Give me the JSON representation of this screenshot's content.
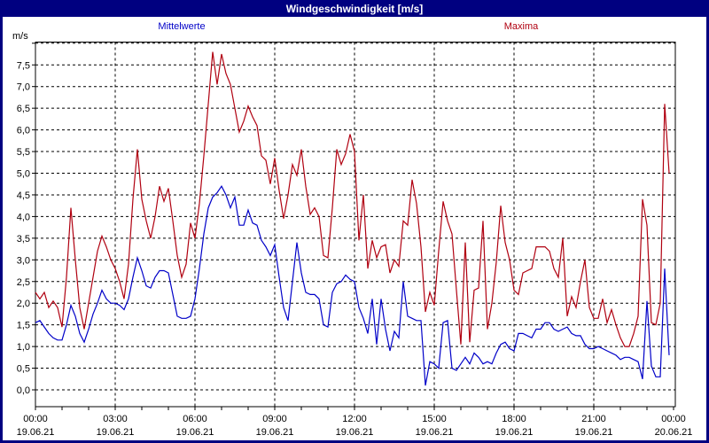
{
  "window": {
    "title": "Windgeschwindigkeit [m/s]"
  },
  "legend": {
    "mean_label": "Mittelwerte",
    "max_label": "Maxima"
  },
  "y_axis": {
    "unit": "m/s"
  },
  "chart_data": {
    "type": "line",
    "title": "Windgeschwindigkeit [m/s]",
    "grid": true,
    "x_start_hour": 0,
    "x_step_minutes": 10,
    "x_range_hours": [
      0,
      24
    ],
    "y_range": [
      0,
      8
    ],
    "y_tick_step": 0.5,
    "y_tick_labels": [
      "0,0",
      "0,5",
      "1,0",
      "1,5",
      "2,0",
      "2,5",
      "3,0",
      "3,5",
      "4,0",
      "4,5",
      "5,0",
      "5,5",
      "6,0",
      "6,5",
      "7,0",
      "7,5"
    ],
    "x_ticks": [
      {
        "time": "00:00",
        "date": "19.06.21"
      },
      {
        "time": "03:00",
        "date": "19.06.21"
      },
      {
        "time": "06:00",
        "date": "19.06.21"
      },
      {
        "time": "09:00",
        "date": "19.06.21"
      },
      {
        "time": "12:00",
        "date": "19.06.21"
      },
      {
        "time": "15:00",
        "date": "19.06.21"
      },
      {
        "time": "18:00",
        "date": "19.06.21"
      },
      {
        "time": "21:00",
        "date": "19.06.21"
      },
      {
        "time": "00:00",
        "date": "20.06.21"
      }
    ],
    "series": [
      {
        "name": "Mittelwerte",
        "color": "#0000C8",
        "values": [
          1.55,
          1.6,
          1.45,
          1.3,
          1.2,
          1.15,
          1.15,
          1.5,
          1.95,
          1.7,
          1.3,
          1.1,
          1.4,
          1.75,
          2.0,
          2.3,
          2.1,
          2.0,
          2.0,
          1.95,
          1.85,
          2.1,
          2.6,
          3.05,
          2.75,
          2.4,
          2.35,
          2.6,
          2.75,
          2.75,
          2.7,
          2.2,
          1.7,
          1.65,
          1.65,
          1.7,
          2.1,
          2.8,
          3.6,
          4.2,
          4.45,
          4.55,
          4.7,
          4.5,
          4.2,
          4.45,
          3.8,
          3.8,
          4.15,
          3.85,
          3.8,
          3.45,
          3.3,
          3.1,
          3.35,
          2.6,
          1.9,
          1.6,
          2.5,
          3.4,
          2.7,
          2.25,
          2.2,
          2.2,
          2.1,
          1.5,
          1.45,
          2.25,
          2.45,
          2.5,
          2.65,
          2.55,
          2.5,
          1.9,
          1.65,
          1.3,
          2.1,
          1.05,
          2.1,
          1.4,
          0.9,
          1.35,
          1.2,
          2.5,
          1.7,
          1.65,
          1.6,
          1.6,
          0.1,
          0.65,
          0.6,
          0.5,
          1.55,
          1.6,
          0.5,
          0.45,
          0.6,
          0.75,
          0.6,
          0.85,
          0.75,
          0.6,
          0.65,
          0.6,
          0.85,
          1.05,
          1.1,
          0.95,
          0.9,
          1.3,
          1.3,
          1.25,
          1.2,
          1.4,
          1.4,
          1.55,
          1.55,
          1.4,
          1.35,
          1.4,
          1.45,
          1.3,
          1.25,
          1.25,
          1.05,
          0.95,
          0.95,
          1.0,
          0.95,
          0.9,
          0.85,
          0.8,
          0.7,
          0.75,
          0.75,
          0.7,
          0.65,
          0.25,
          2.05,
          0.55,
          0.3,
          0.3,
          2.8,
          0.8
        ]
      },
      {
        "name": "Maxima",
        "color": "#B00010",
        "values": [
          2.25,
          2.1,
          2.25,
          1.9,
          2.05,
          1.9,
          1.45,
          2.6,
          4.2,
          3.0,
          1.9,
          1.4,
          2.0,
          2.6,
          3.2,
          3.55,
          3.3,
          3.0,
          2.8,
          2.5,
          2.1,
          2.9,
          4.4,
          5.55,
          4.4,
          3.9,
          3.5,
          4.0,
          4.7,
          4.35,
          4.65,
          3.9,
          3.1,
          2.6,
          2.9,
          3.85,
          3.5,
          4.3,
          5.4,
          6.6,
          7.8,
          7.05,
          7.75,
          7.3,
          7.05,
          6.5,
          5.95,
          6.2,
          6.55,
          6.3,
          6.1,
          5.4,
          5.3,
          4.75,
          5.35,
          4.6,
          3.95,
          4.5,
          5.2,
          4.95,
          5.55,
          4.7,
          4.05,
          4.2,
          4.0,
          3.1,
          3.05,
          4.2,
          5.55,
          5.2,
          5.45,
          5.9,
          5.5,
          3.45,
          4.5,
          2.8,
          3.45,
          3.05,
          3.3,
          3.35,
          2.7,
          3.0,
          2.85,
          3.9,
          3.8,
          4.85,
          4.3,
          3.3,
          1.8,
          2.25,
          1.95,
          3.2,
          4.35,
          3.9,
          3.6,
          2.3,
          1.05,
          3.4,
          1.1,
          2.3,
          2.35,
          3.9,
          1.4,
          2.0,
          2.95,
          4.25,
          3.4,
          3.0,
          2.3,
          2.2,
          2.7,
          2.75,
          2.8,
          3.3,
          3.3,
          3.3,
          3.2,
          2.8,
          2.6,
          3.5,
          1.7,
          2.15,
          1.9,
          2.5,
          3.0,
          1.9,
          1.65,
          1.65,
          2.1,
          1.55,
          1.85,
          1.5,
          1.2,
          1.0,
          1.0,
          1.3,
          1.7,
          4.4,
          3.8,
          1.55,
          1.5,
          2.0,
          6.6,
          5.0
        ]
      }
    ]
  }
}
